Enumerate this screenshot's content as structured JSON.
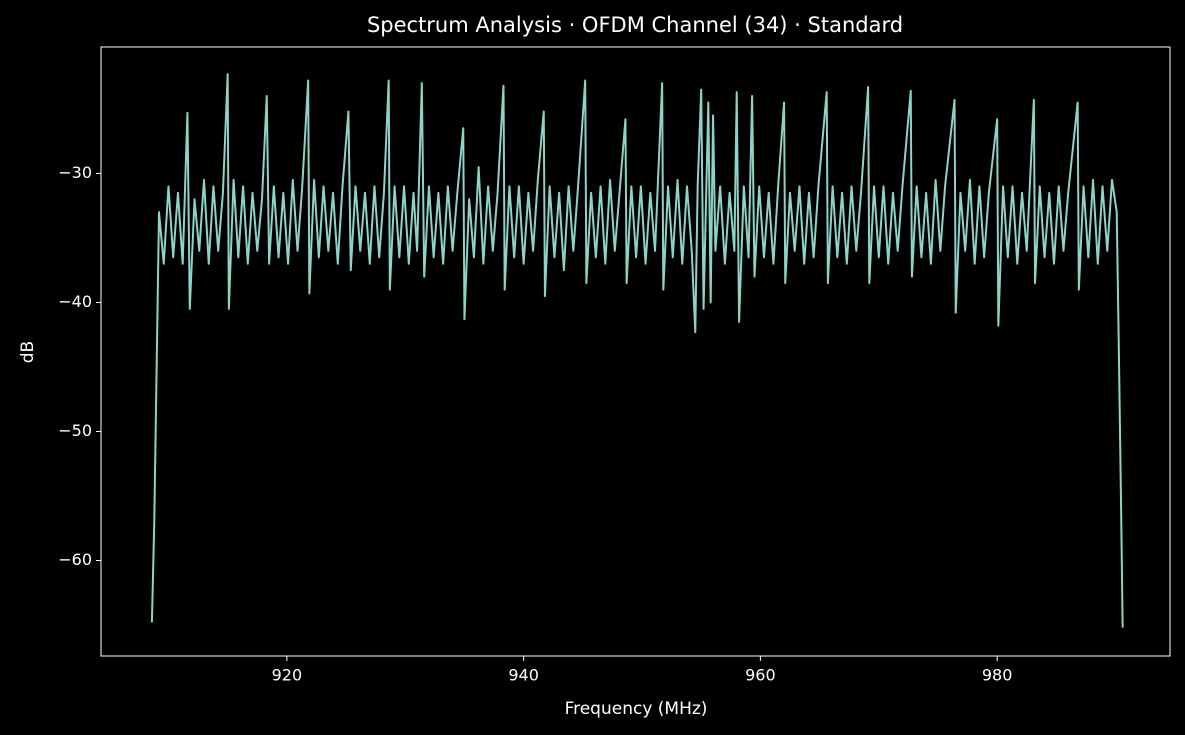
{
  "chart_data": {
    "type": "line",
    "title": "Spectrum Analysis · OFDM Channel (34) · Standard",
    "xlabel": "Frequency (MHz)",
    "ylabel": "dB",
    "xlim": [
      904.3,
      994.6
    ],
    "ylim": [
      -67.4,
      -20.2
    ],
    "xticks": [
      920,
      940,
      960,
      980
    ],
    "yticks": [
      {
        "value": -30,
        "label": "−30"
      },
      {
        "value": -40,
        "label": "−40"
      },
      {
        "value": -50,
        "label": "−50"
      },
      {
        "value": -60,
        "label": "−60"
      }
    ],
    "grid": false,
    "series": [
      {
        "color": "#8dd3c7",
        "x": [
          908.6,
          908.8,
          909.0,
          909.2,
          909.6,
          910.0,
          910.4,
          910.8,
          911.2,
          911.6,
          911.8,
          912.2,
          912.6,
          913.0,
          913.4,
          913.8,
          914.2,
          914.6,
          915.0,
          915.1,
          915.5,
          915.9,
          916.3,
          916.7,
          917.1,
          917.5,
          917.9,
          918.3,
          918.5,
          918.9,
          919.3,
          919.7,
          920.1,
          920.5,
          920.9,
          921.3,
          921.8,
          921.9,
          922.3,
          922.7,
          923.1,
          923.5,
          923.9,
          924.3,
          924.7,
          925.2,
          925.4,
          925.8,
          926.2,
          926.6,
          927.0,
          927.4,
          927.8,
          928.2,
          928.6,
          928.7,
          929.1,
          929.5,
          929.9,
          930.3,
          930.7,
          931.0,
          931.4,
          931.6,
          932.0,
          932.4,
          932.8,
          933.2,
          933.6,
          934.0,
          934.4,
          934.9,
          935.0,
          935.4,
          935.8,
          936.2,
          936.6,
          937.0,
          937.4,
          937.8,
          938.3,
          938.4,
          938.8,
          939.2,
          939.6,
          940.0,
          940.4,
          940.8,
          941.2,
          941.7,
          941.8,
          942.2,
          942.6,
          943.0,
          943.4,
          943.8,
          944.2,
          944.6,
          945.2,
          945.3,
          945.7,
          946.1,
          946.5,
          946.9,
          947.3,
          947.7,
          948.1,
          948.6,
          948.7,
          949.1,
          949.5,
          949.9,
          950.3,
          950.7,
          951.1,
          951.7,
          951.8,
          952.2,
          952.6,
          953.0,
          953.4,
          953.8,
          954.2,
          954.5,
          954.7,
          955.0,
          955.2,
          955.6,
          955.8,
          956.0,
          956.2,
          956.6,
          957.0,
          957.4,
          957.8,
          958.0,
          958.2,
          958.6,
          959.0,
          959.3,
          959.5,
          959.9,
          960.3,
          960.7,
          961.1,
          961.5,
          962.0,
          962.1,
          962.5,
          962.9,
          963.3,
          963.7,
          964.1,
          964.5,
          964.9,
          965.6,
          965.7,
          966.1,
          966.5,
          966.9,
          967.3,
          967.7,
          968.1,
          968.5,
          969.1,
          969.2,
          969.6,
          970.0,
          970.4,
          970.8,
          971.2,
          971.6,
          972.0,
          972.7,
          972.8,
          973.2,
          973.6,
          974.0,
          974.4,
          974.8,
          975.2,
          975.6,
          976.4,
          976.5,
          976.9,
          977.3,
          977.7,
          978.1,
          978.5,
          978.9,
          979.3,
          980.0,
          980.1,
          980.5,
          980.9,
          981.3,
          981.7,
          982.1,
          982.5,
          983.1,
          983.2,
          983.6,
          984.0,
          984.4,
          984.8,
          985.2,
          985.6,
          986.0,
          986.8,
          986.9,
          987.3,
          987.7,
          988.1,
          988.5,
          988.9,
          989.3,
          989.7,
          990.1,
          990.3,
          990.5,
          990.6
        ],
        "values": [
          -64.8,
          -57,
          -45,
          -33,
          -37,
          -31,
          -36.5,
          -31.5,
          -37,
          -25.3,
          -40.5,
          -32,
          -36,
          -30.5,
          -37,
          -31,
          -36,
          -31.5,
          -22.3,
          -40.5,
          -30.5,
          -36.5,
          -31,
          -37,
          -31.5,
          -36,
          -32,
          -24,
          -37,
          -31,
          -36.5,
          -31.5,
          -37,
          -30.5,
          -36,
          -31,
          -22.8,
          -39.3,
          -30.5,
          -36.5,
          -31,
          -36,
          -31.5,
          -37,
          -31,
          -25.2,
          -37.5,
          -31,
          -36,
          -31.5,
          -37,
          -31,
          -36.5,
          -31.5,
          -22.8,
          -39,
          -31,
          -36.5,
          -31,
          -37,
          -31.5,
          -36,
          -23,
          -38,
          -31,
          -36.5,
          -31.5,
          -37,
          -31,
          -36,
          -31.5,
          -26.5,
          -41.3,
          -32,
          -36.5,
          -29.5,
          -37,
          -31,
          -36,
          -31.5,
          -23.2,
          -39,
          -31,
          -36.5,
          -31,
          -37,
          -31.5,
          -36,
          -30.5,
          -25.2,
          -39.5,
          -31,
          -36.5,
          -31.5,
          -37.5,
          -31,
          -36,
          -31,
          -22.8,
          -38.5,
          -31.5,
          -36.5,
          -31,
          -37,
          -30.5,
          -36,
          -31.5,
          -25.8,
          -38.5,
          -31,
          -36.5,
          -31,
          -37,
          -31.5,
          -36,
          -23,
          -39,
          -31,
          -36.5,
          -30.5,
          -37,
          -31,
          -36,
          -42.3,
          -31,
          -23.5,
          -40.5,
          -24.5,
          -40,
          -25.5,
          -36,
          -31,
          -37,
          -31.5,
          -36,
          -23.7,
          -41.5,
          -31,
          -36.5,
          -24,
          -38,
          -31,
          -36.5,
          -31.5,
          -37,
          -31,
          -24.5,
          -38.5,
          -31.5,
          -36,
          -31,
          -37,
          -31.5,
          -36.5,
          -31,
          -23.7,
          -38.5,
          -31,
          -36.5,
          -31.5,
          -37,
          -31,
          -36,
          -31.5,
          -23.3,
          -38.5,
          -31,
          -36.5,
          -31,
          -37,
          -31.5,
          -36,
          -31,
          -23.6,
          -38,
          -31,
          -36.5,
          -31.5,
          -37,
          -30.5,
          -36,
          -31,
          -24.3,
          -40.8,
          -31.5,
          -36,
          -30.5,
          -37,
          -31,
          -36.5,
          -31.5,
          -25.8,
          -41.8,
          -31,
          -36.5,
          -31,
          -37,
          -31.5,
          -36,
          -24.3,
          -38.5,
          -31,
          -36.5,
          -31.5,
          -37,
          -31,
          -36,
          -31.5,
          -24.5,
          -39,
          -31,
          -36.5,
          -30.5,
          -37,
          -31,
          -36,
          -30.5,
          -33,
          -45,
          -58,
          -65.2
        ]
      }
    ]
  }
}
